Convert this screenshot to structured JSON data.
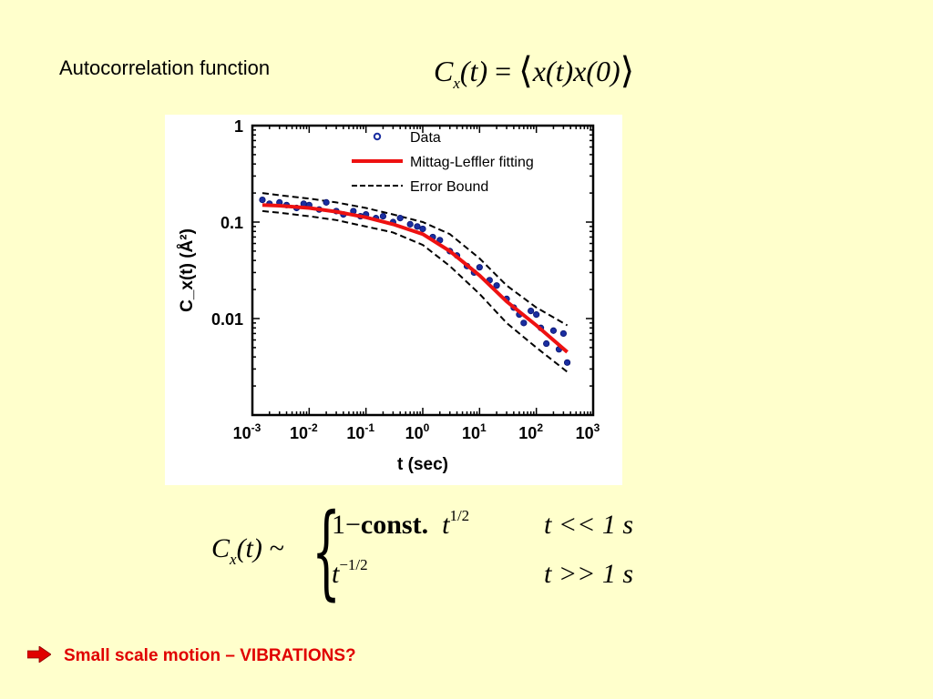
{
  "slide": {
    "heading": "Autocorrelation function",
    "bullet_text": "Small scale motion – VIBRATIONS?",
    "bullet_icon": "right-arrow-icon",
    "accent_color": "#E00000",
    "background_color": "#FFFFCC"
  },
  "formula_top": {
    "lhs_symbol": "C",
    "lhs_subscript": "x",
    "lhs_arg": "(t)",
    "equals": "=",
    "rhs_body": "x(t)x(0)"
  },
  "formula_bottom": {
    "lhs_symbol": "C",
    "lhs_subscript": "x",
    "lhs_arg": "(t) ~",
    "row1_prefix": "1−",
    "row1_bold": "const.",
    "row1_t": "t",
    "row1_exponent": "1/2",
    "row1_condition": "t << 1 s",
    "row2_t": "t",
    "row2_exponent": "−1/2",
    "row2_condition": "t >> 1 s"
  },
  "chart_data": {
    "type": "scatter",
    "xlabel": "t (sec)",
    "ylabel": "C_x(t) (Å²)",
    "x_scale": "log",
    "y_scale": "log",
    "xlim": [
      0.001,
      1000
    ],
    "ylim": [
      0.001,
      1
    ],
    "x_ticks": [
      {
        "base": "10",
        "exp": "-3"
      },
      {
        "base": "10",
        "exp": "-2"
      },
      {
        "base": "10",
        "exp": "-1"
      },
      {
        "base": "10",
        "exp": "0"
      },
      {
        "base": "10",
        "exp": "1"
      },
      {
        "base": "10",
        "exp": "2"
      },
      {
        "base": "10",
        "exp": "3"
      }
    ],
    "y_ticks": [
      "1",
      "0.1",
      "0.01"
    ],
    "y_tick_values": [
      1,
      0.1,
      0.01
    ],
    "legend_position": "top-right",
    "legend": [
      {
        "label": "Data",
        "style": "marker",
        "color": "#1a2ea0"
      },
      {
        "label": "Mittag-Leffler fitting",
        "style": "line",
        "color": "#ee1111"
      },
      {
        "label": "Error Bound",
        "style": "dashed",
        "color": "#000000"
      }
    ],
    "series": [
      {
        "name": "Data",
        "kind": "points",
        "x": [
          0.0015,
          0.002,
          0.003,
          0.004,
          0.006,
          0.008,
          0.01,
          0.015,
          0.02,
          0.03,
          0.04,
          0.06,
          0.08,
          0.1,
          0.15,
          0.2,
          0.3,
          0.4,
          0.6,
          0.8,
          1.0,
          1.5,
          2,
          3,
          4,
          6,
          8,
          10,
          15,
          20,
          30,
          40,
          50,
          60,
          80,
          100,
          120,
          150,
          200,
          250,
          300,
          350
        ],
        "y": [
          0.17,
          0.155,
          0.16,
          0.15,
          0.14,
          0.155,
          0.15,
          0.135,
          0.16,
          0.13,
          0.12,
          0.13,
          0.115,
          0.12,
          0.11,
          0.115,
          0.1,
          0.11,
          0.095,
          0.09,
          0.085,
          0.07,
          0.065,
          0.05,
          0.045,
          0.035,
          0.03,
          0.034,
          0.025,
          0.022,
          0.016,
          0.013,
          0.011,
          0.009,
          0.012,
          0.011,
          0.008,
          0.0055,
          0.0075,
          0.0048,
          0.007,
          0.0035
        ]
      },
      {
        "name": "Mittag-Leffler fitting",
        "kind": "line",
        "x": [
          0.0015,
          0.003,
          0.01,
          0.03,
          0.1,
          0.3,
          1,
          3,
          10,
          30,
          100,
          350
        ],
        "y": [
          0.15,
          0.148,
          0.14,
          0.128,
          0.112,
          0.095,
          0.075,
          0.05,
          0.028,
          0.015,
          0.0085,
          0.0045
        ]
      },
      {
        "name": "Error Bound",
        "kind": "dashed",
        "x": [
          0.0015,
          0.003,
          0.01,
          0.03,
          0.1,
          0.3,
          1,
          3,
          10,
          30,
          100,
          350
        ],
        "y": [
          0.2,
          0.19,
          0.175,
          0.16,
          0.14,
          0.12,
          0.1,
          0.075,
          0.042,
          0.022,
          0.013,
          0.0085
        ]
      },
      {
        "name": "Error Bound",
        "kind": "dashed",
        "x": [
          0.0015,
          0.003,
          0.01,
          0.03,
          0.1,
          0.3,
          1,
          3,
          10,
          30,
          100,
          350
        ],
        "y": [
          0.13,
          0.125,
          0.115,
          0.105,
          0.09,
          0.078,
          0.058,
          0.035,
          0.018,
          0.009,
          0.005,
          0.0028
        ]
      }
    ]
  }
}
